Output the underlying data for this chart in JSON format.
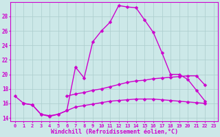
{
  "x": [
    0,
    1,
    2,
    3,
    4,
    5,
    6,
    7,
    8,
    9,
    10,
    11,
    12,
    13,
    14,
    15,
    16,
    17,
    18,
    19,
    20,
    21,
    22,
    23
  ],
  "line1": [
    17.0,
    16.0,
    15.8,
    14.5,
    14.2,
    14.5,
    15.0,
    21.0,
    19.5,
    24.5,
    26.0,
    27.2,
    29.5,
    29.3,
    29.2,
    27.5,
    25.8,
    23.0,
    20.0,
    20.0,
    19.3,
    17.8,
    16.3,
    null
  ],
  "line2": [
    null,
    null,
    null,
    null,
    null,
    null,
    17.0,
    17.3,
    17.5,
    17.8,
    18.0,
    18.3,
    18.6,
    18.9,
    19.1,
    19.2,
    19.4,
    19.5,
    19.6,
    19.7,
    19.8,
    19.8,
    18.5,
    null
  ],
  "line3": [
    null,
    16.0,
    15.8,
    14.5,
    14.3,
    14.5,
    15.0,
    15.5,
    15.7,
    15.9,
    16.1,
    16.3,
    16.4,
    16.5,
    16.6,
    16.6,
    16.6,
    16.5,
    16.4,
    16.3,
    16.2,
    16.1,
    16.0,
    null
  ],
  "xlabel": "Windchill (Refroidissement éolien,°C)",
  "ylim": [
    13.5,
    30.0
  ],
  "xlim": [
    -0.5,
    23.5
  ],
  "yticks": [
    14,
    16,
    18,
    20,
    22,
    24,
    26,
    28
  ],
  "xticks": [
    0,
    1,
    2,
    3,
    4,
    5,
    6,
    7,
    8,
    9,
    10,
    11,
    12,
    13,
    14,
    15,
    16,
    17,
    18,
    19,
    20,
    21,
    22,
    23
  ],
  "line_color": "#cc00cc",
  "bg_color": "#cce8e8",
  "grid_color": "#aacccc",
  "marker": "D",
  "marker_size": 2.5,
  "line_width": 1.0
}
